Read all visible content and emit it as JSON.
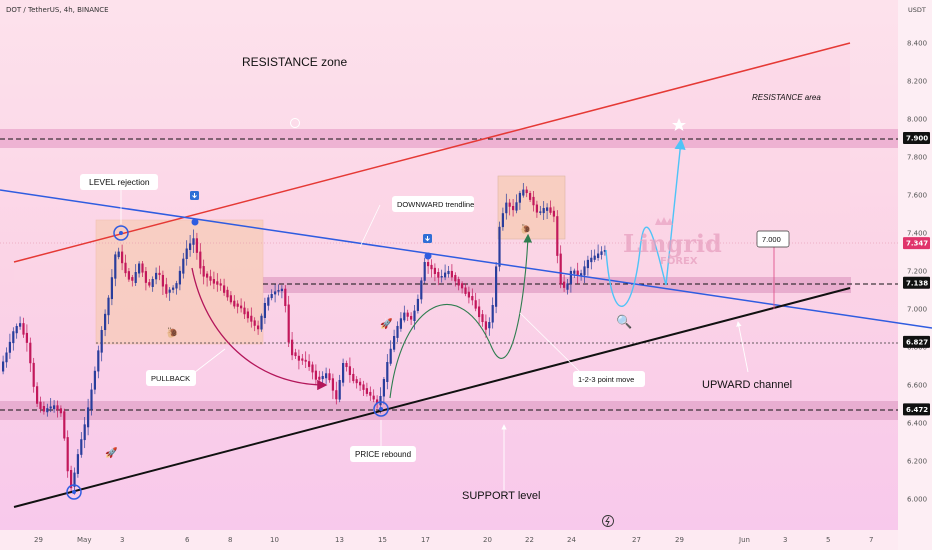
{
  "header": {
    "title": "DOT / TetherUS, 4h, BINANCE",
    "currency": "USDT"
  },
  "chart_data": {
    "type": "candlestick",
    "symbol": "DOT / TetherUS",
    "timeframe": "4h",
    "exchange": "BINANCE",
    "y_ticks": [
      6.0,
      6.2,
      6.4,
      6.6,
      6.8,
      7.0,
      7.2,
      7.4,
      7.6,
      7.8,
      8.0,
      8.2,
      8.4
    ],
    "y_tick_labels": [
      "6.000",
      "6.200",
      "6.400",
      "6.600",
      "6.800",
      "7.000",
      "7.200",
      "7.400",
      "7.600",
      "7.800",
      "8.000",
      "8.200",
      "8.400"
    ],
    "x_ticks": [
      "29",
      "May",
      "3",
      "6",
      "8",
      "10",
      "13",
      "15",
      "17",
      "20",
      "22",
      "24",
      "27",
      "29",
      "Jun",
      "3",
      "5",
      "7"
    ],
    "price_labels": [
      {
        "label": "7.900",
        "value": 7.9,
        "style": "dark"
      },
      {
        "label": "7.347",
        "value": 7.347,
        "style": "red"
      },
      {
        "label": "7.138",
        "value": 7.138,
        "style": "dark"
      },
      {
        "label": "6.827",
        "value": 6.827,
        "style": "dark"
      },
      {
        "label": "6.472",
        "value": 6.472,
        "style": "dark"
      }
    ],
    "target_box_label": "7.000",
    "annotations": {
      "resistance_zone": "RESISTANCE zone",
      "resistance_area": "RESISTANCE area",
      "level_rejection": "LEVEL rejection",
      "downward_trendline": "DOWNWARD trendline",
      "pullback": "PULLBACK",
      "price_rebound": "PRICE rebound",
      "support_level": "SUPPORT level",
      "upward_channel": "UPWARD channel",
      "point_move": "1-2-3 point move"
    },
    "watermark": {
      "name": "Lingrid",
      "sub": "FOREX"
    },
    "colors": {
      "bull": "#2a3e9c",
      "bear": "#c2185b",
      "resistance_line": "#e53935",
      "downtrend": "#2f5ce0",
      "support_line": "#111111",
      "projection": "#4fc3f7",
      "pullback_arrow": "#b3165a",
      "move_arrow": "#2e7d4f"
    }
  }
}
